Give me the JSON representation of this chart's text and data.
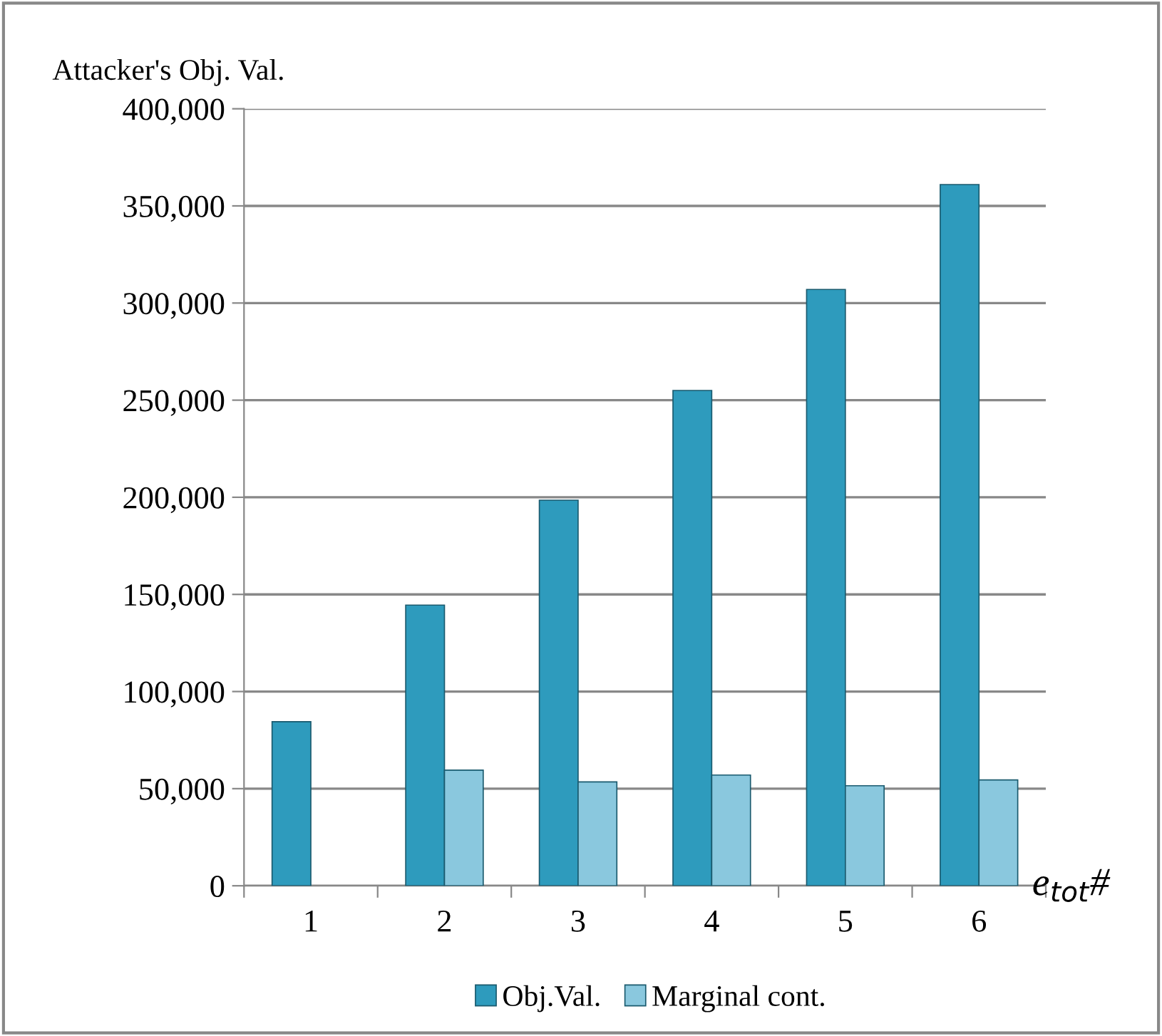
{
  "chart_data": {
    "type": "bar",
    "ylabel": "Attacker's Obj. Val.",
    "xlabel": "e$_{tot}$#",
    "categories": [
      "1",
      "2",
      "3",
      "4",
      "5",
      "6"
    ],
    "series": [
      {
        "name": "Obj.Val.",
        "color": "#2e9bbd",
        "values": [
          84500,
          144500,
          198500,
          255000,
          307000,
          361000
        ]
      },
      {
        "name": "Marginal cont.",
        "color": "#8ac8de",
        "values": [
          null,
          59500,
          53500,
          57000,
          51500,
          54500
        ]
      }
    ],
    "ylim": [
      0,
      400000
    ],
    "yticks": [
      {
        "value": 0,
        "label": "0"
      },
      {
        "value": 50000,
        "label": "50,000"
      },
      {
        "value": 100000,
        "label": "100,000"
      },
      {
        "value": 150000,
        "label": "150,000"
      },
      {
        "value": 200000,
        "label": "200,000"
      },
      {
        "value": 250000,
        "label": "250,000"
      },
      {
        "value": 300000,
        "label": "300,000"
      },
      {
        "value": 350000,
        "label": "350,000"
      },
      {
        "value": 400000,
        "label": "400,000"
      }
    ],
    "grid": "y",
    "legend": "bottom"
  }
}
